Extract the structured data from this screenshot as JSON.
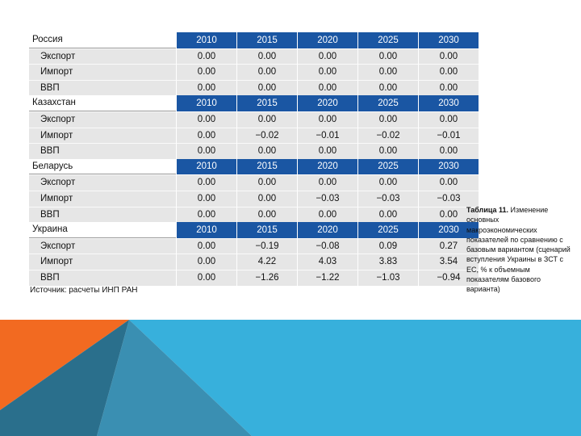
{
  "columns": [
    "2010",
    "2015",
    "2020",
    "2025",
    "2030"
  ],
  "sections": [
    {
      "country": "Россия",
      "rows": [
        {
          "label": "Экспорт",
          "values": [
            "0.00",
            "0.00",
            "0.00",
            "0.00",
            "0.00"
          ]
        },
        {
          "label": "Импорт",
          "values": [
            "0.00",
            "0.00",
            "0.00",
            "0.00",
            "0.00"
          ]
        },
        {
          "label": "ВВП",
          "values": [
            "0.00",
            "0.00",
            "0.00",
            "0.00",
            "0.00"
          ]
        }
      ]
    },
    {
      "country": "Казахстан",
      "rows": [
        {
          "label": "Экспорт",
          "values": [
            "0.00",
            "0.00",
            "0.00",
            "0.00",
            "0.00"
          ]
        },
        {
          "label": "Импорт",
          "values": [
            "0.00",
            "−0.02",
            "−0.01",
            "−0.02",
            "−0.01"
          ]
        },
        {
          "label": "ВВП",
          "values": [
            "0.00",
            "0.00",
            "0.00",
            "0.00",
            "0.00"
          ]
        }
      ]
    },
    {
      "country": "Беларусь",
      "rows": [
        {
          "label": "Экспорт",
          "values": [
            "0.00",
            "0.00",
            "0.00",
            "0.00",
            "0.00"
          ]
        },
        {
          "label": "Импорт",
          "values": [
            "0.00",
            "0.00",
            "−0.03",
            "−0.03",
            "−0.03"
          ]
        },
        {
          "label": "ВВП",
          "values": [
            "0.00",
            "0.00",
            "0.00",
            "0.00",
            "0.00"
          ]
        }
      ]
    },
    {
      "country": "Украина",
      "rows": [
        {
          "label": "Экспорт",
          "values": [
            "0.00",
            "−0.19",
            "−0.08",
            "0.09",
            "0.27"
          ]
        },
        {
          "label": "Импорт",
          "values": [
            "0.00",
            "4.22",
            "4.03",
            "3.83",
            "3.54"
          ]
        },
        {
          "label": "ВВП",
          "values": [
            "0.00",
            "−1.26",
            "−1.22",
            "−1.03",
            "−0.94"
          ]
        }
      ]
    }
  ],
  "source": "Источник: расчеты ИНП РАН",
  "caption": {
    "number": "Таблица 11.",
    "text": "Изменение основных макроэкономических показателей по сравнению с базовым вариантом (сценарий вступления Украины в ЗСТ с ЕС, % к объемным показателям базового варианта)"
  },
  "colors": {
    "header_blue": "#1a56a3",
    "row_gray": "#e6e6e6",
    "orange": "#f26a21",
    "light_blue": "#37b0dc",
    "teal": "#3a8fb2",
    "dark_teal": "#2a6f8c"
  }
}
